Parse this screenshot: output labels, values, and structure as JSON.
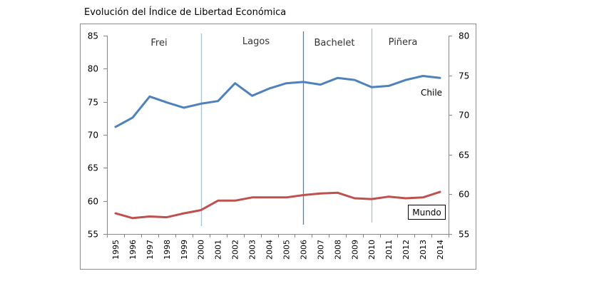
{
  "chart_data": {
    "type": "line",
    "title": "Evolución del Índice de Libertad Económica",
    "xlabel": "",
    "ylabel": "",
    "categories": [
      "1995",
      "1996",
      "1997",
      "1998",
      "1999",
      "2000",
      "2001",
      "2002",
      "2003",
      "2004",
      "2005",
      "2006",
      "2007",
      "2008",
      "2009",
      "2010",
      "2011",
      "2012",
      "2013",
      "2014"
    ],
    "left_axis": {
      "min": 55,
      "max": 85,
      "ticks": [
        55,
        60,
        65,
        70,
        75,
        80,
        85
      ]
    },
    "right_axis": {
      "min": 55,
      "max": 80,
      "ticks": [
        55,
        60,
        65,
        70,
        75,
        80
      ]
    },
    "grid": false,
    "series": [
      {
        "name": "Chile",
        "axis": "left",
        "color": "#4F81BD",
        "values": [
          71.2,
          72.6,
          75.8,
          74.9,
          74.1,
          74.7,
          75.1,
          77.8,
          75.9,
          77.0,
          77.8,
          78.0,
          77.6,
          78.6,
          78.3,
          77.2,
          77.4,
          78.3,
          78.9,
          78.6
        ]
      },
      {
        "name": "Mundo",
        "axis": "right",
        "color": "#C0504D",
        "values": [
          57.6,
          57.0,
          57.2,
          57.1,
          57.6,
          58.0,
          59.2,
          59.2,
          59.6,
          59.6,
          59.6,
          59.9,
          60.1,
          60.2,
          59.5,
          59.4,
          59.7,
          59.5,
          59.6,
          60.3
        ]
      }
    ],
    "annotations": {
      "periods": [
        {
          "label": "Frei",
          "start": "1995",
          "end": "2000"
        },
        {
          "label": "Lagos",
          "start": "2000",
          "end": "2006"
        },
        {
          "label": "Bachelet",
          "start": "2006",
          "end": "2010"
        },
        {
          "label": "Piñera",
          "start": "2010",
          "end": "2014"
        }
      ],
      "dividers": [
        {
          "year": "2000",
          "color": "#A9BFD4"
        },
        {
          "year": "2006",
          "color": "#4F81BD"
        },
        {
          "year": "2010",
          "color": "#A9BFD4"
        }
      ]
    },
    "legend": "inline-labels"
  }
}
